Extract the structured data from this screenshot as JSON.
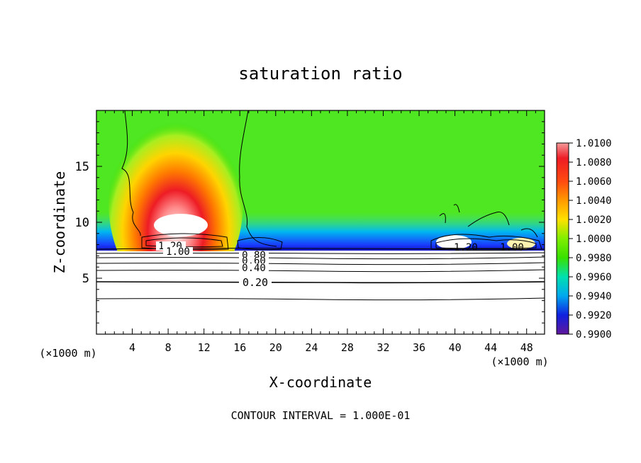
{
  "chart_data": {
    "type": "heatmap",
    "title": "saturation ratio",
    "xlabel": "X-coordinate",
    "ylabel": "Z-coordinate",
    "x_unit_left": "(×1000 m)",
    "x_unit_right": "(×1000 m)",
    "footer": "CONTOUR INTERVAL = 1.000E-01",
    "xlim": [
      0,
      50
    ],
    "ylim": [
      0,
      20
    ],
    "x_ticks": [
      "4",
      "8",
      "12",
      "16",
      "20",
      "24",
      "28",
      "32",
      "36",
      "40",
      "44",
      "48"
    ],
    "x_tick_values": [
      4,
      8,
      12,
      16,
      20,
      24,
      28,
      32,
      36,
      40,
      44,
      48
    ],
    "y_ticks": [
      "5",
      "10",
      "15"
    ],
    "y_tick_values": [
      5,
      10,
      15
    ],
    "colorbar": {
      "labels": [
        "1.0100",
        "1.0080",
        "1.0060",
        "1.0040",
        "1.0020",
        "1.0000",
        "0.9980",
        "0.9960",
        "0.9940",
        "0.9920",
        "0.9900"
      ],
      "values": [
        1.01,
        1.008,
        1.006,
        1.004,
        1.002,
        1.0,
        0.998,
        0.996,
        0.994,
        0.992,
        0.99
      ],
      "colors": [
        "#ee1c25",
        "#ff3a1e",
        "#ff6a00",
        "#ff9a00",
        "#ffd400",
        "#c8f000",
        "#38e000",
        "#00e0a0",
        "#00b8e8",
        "#1a5cff",
        "#1010c0",
        "#50189a"
      ]
    },
    "contours": [
      {
        "label": "0.20",
        "z": 4.8
      },
      {
        "label": "0.40",
        "z": 6.1
      },
      {
        "label": "0.60",
        "z": 6.6
      },
      {
        "label": "0.80",
        "z": 7.0
      },
      {
        "label": "1.00",
        "z": 7.7
      },
      {
        "label": "1.20",
        "z": 7.9
      },
      {
        "label": "1.20",
        "z": 7.9
      },
      {
        "label": "1.00",
        "z": 7.7
      }
    ],
    "background_value": 1.0,
    "features": [
      {
        "name": "plume",
        "x": 9,
        "z": 11,
        "peak": 1.01
      },
      {
        "name": "subsaturated layer",
        "z": 7.6,
        "value": 0.992
      }
    ]
  }
}
